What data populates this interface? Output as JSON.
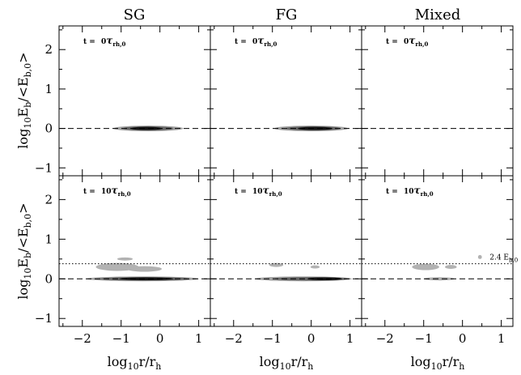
{
  "chart_data": {
    "type": "heatmap",
    "columns": [
      "SG",
      "FG",
      "Mixed"
    ],
    "xlabel_base": "log",
    "xlabel_sub": "10",
    "xlabel_rest": "r/r",
    "xlabel_rest_sub": "h",
    "ylabel_base": "log",
    "ylabel_sub": "10",
    "ylabel_mid": "E",
    "ylabel_mid_sub": "b",
    "ylabel_rest": "/<E",
    "ylabel_rest_sub": "b,0",
    "ylabel_end": ">",
    "xlim": [
      -2.6,
      1.3
    ],
    "ylim": [
      -1.2,
      2.6
    ],
    "xticks": [
      -2,
      -1,
      0,
      1
    ],
    "yticks": [
      -1,
      0,
      1,
      2
    ],
    "reference_lines": {
      "dashed_y": 0,
      "dotted_y": 0.38
    },
    "rows": [
      {
        "label_prefix": "t = ",
        "time_value": "0",
        "time_unit": "τ",
        "time_unit_sub": "rh,0"
      },
      {
        "label_prefix": "t = ",
        "time_value": "10",
        "time_unit": "τ",
        "time_unit_sub": "rh,0"
      }
    ],
    "annotation": {
      "text": "2.4 E",
      "sub": "b,0",
      "panel": "row2-col3",
      "x": 0.45,
      "y": 0.55
    },
    "density": [
      [
        [
          {
            "x": -0.3,
            "y": 0.0,
            "rx": 0.9,
            "ry": 0.07,
            "level": 0.25
          },
          {
            "x": -0.3,
            "y": 0.0,
            "rx": 0.65,
            "ry": 0.055,
            "level": 0.55
          },
          {
            "x": -0.35,
            "y": 0.0,
            "rx": 0.4,
            "ry": 0.04,
            "level": 0.95
          }
        ],
        [
          {
            "x": 0.0,
            "y": 0.0,
            "rx": 0.95,
            "ry": 0.07,
            "level": 0.25
          },
          {
            "x": 0.05,
            "y": 0.0,
            "rx": 0.7,
            "ry": 0.055,
            "level": 0.55
          },
          {
            "x": 0.1,
            "y": 0.0,
            "rx": 0.45,
            "ry": 0.04,
            "level": 0.95
          }
        ],
        []
      ],
      [
        [
          {
            "x": -0.45,
            "y": 0.0,
            "rx": 1.45,
            "ry": 0.06,
            "level": 0.25
          },
          {
            "x": -0.4,
            "y": 0.0,
            "rx": 1.15,
            "ry": 0.045,
            "level": 0.55
          },
          {
            "x": -0.35,
            "y": 0.0,
            "rx": 0.7,
            "ry": 0.035,
            "level": 0.95
          },
          {
            "x": -1.1,
            "y": 0.3,
            "rx": 0.55,
            "ry": 0.1,
            "level": 0.18
          },
          {
            "x": -0.4,
            "y": 0.25,
            "rx": 0.45,
            "ry": 0.07,
            "level": 0.18
          },
          {
            "x": -0.9,
            "y": 0.5,
            "rx": 0.2,
            "ry": 0.04,
            "level": 0.18
          }
        ],
        [
          {
            "x": -0.2,
            "y": 0.0,
            "rx": 1.25,
            "ry": 0.06,
            "level": 0.25
          },
          {
            "x": 0.0,
            "y": 0.0,
            "rx": 0.95,
            "ry": 0.045,
            "level": 0.55
          },
          {
            "x": 0.35,
            "y": 0.0,
            "rx": 0.45,
            "ry": 0.035,
            "level": 0.95
          },
          {
            "x": -0.9,
            "y": 0.35,
            "rx": 0.18,
            "ry": 0.05,
            "level": 0.18
          },
          {
            "x": 0.1,
            "y": 0.3,
            "rx": 0.12,
            "ry": 0.04,
            "level": 0.18
          }
        ],
        [
          {
            "x": -0.6,
            "y": 0.0,
            "rx": 0.4,
            "ry": 0.04,
            "level": 0.2
          },
          {
            "x": -0.95,
            "y": 0.3,
            "rx": 0.35,
            "ry": 0.08,
            "level": 0.18
          },
          {
            "x": -0.3,
            "y": 0.3,
            "rx": 0.15,
            "ry": 0.05,
            "level": 0.18
          },
          {
            "x": 0.45,
            "y": 0.55,
            "rx": 0.05,
            "ry": 0.05,
            "level": 0.18
          }
        ]
      ]
    ]
  }
}
